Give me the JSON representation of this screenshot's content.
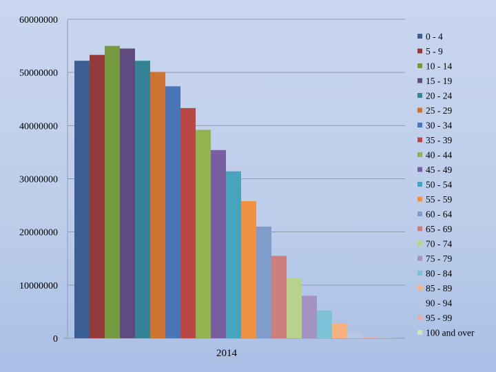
{
  "chart_data": {
    "type": "bar",
    "title": "",
    "xlabel": "",
    "ylabel": "",
    "categories": [
      "2014"
    ],
    "ylim": [
      0,
      60000000
    ],
    "y_ticks": [
      "0",
      "10000000",
      "20000000",
      "30000000",
      "40000000",
      "50000000",
      "60000000"
    ],
    "grid": true,
    "legend_position": "right",
    "series": [
      {
        "name": "0 - 4",
        "color": "#3c5f93",
        "values": [
          52200000
        ]
      },
      {
        "name": "5 - 9",
        "color": "#943b3a",
        "values": [
          53300000
        ]
      },
      {
        "name": "10 - 14",
        "color": "#769a3f",
        "values": [
          55000000
        ]
      },
      {
        "name": "15 - 19",
        "color": "#5f4b80",
        "values": [
          54500000
        ]
      },
      {
        "name": "20 - 24",
        "color": "#358396",
        "values": [
          52200000
        ]
      },
      {
        "name": "25 - 29",
        "color": "#cc7432",
        "values": [
          50100000
        ]
      },
      {
        "name": "30 - 34",
        "color": "#4a76b5",
        "values": [
          47400000
        ]
      },
      {
        "name": "35 - 39",
        "color": "#b84745",
        "values": [
          43300000
        ]
      },
      {
        "name": "40 - 44",
        "color": "#93b351",
        "values": [
          39200000
        ]
      },
      {
        "name": "45 - 49",
        "color": "#7860a0",
        "values": [
          35400000
        ]
      },
      {
        "name": "50 - 54",
        "color": "#47a4bf",
        "values": [
          31400000
        ]
      },
      {
        "name": "55 - 59",
        "color": "#ee9242",
        "values": [
          25800000
        ]
      },
      {
        "name": "60 - 64",
        "color": "#7f9ccb",
        "values": [
          21000000
        ]
      },
      {
        "name": "65 - 69",
        "color": "#ce7f7d",
        "values": [
          15500000
        ]
      },
      {
        "name": "70 - 74",
        "color": "#b6d28d",
        "values": [
          11300000
        ]
      },
      {
        "name": "75 - 79",
        "color": "#a293c0",
        "values": [
          8000000
        ]
      },
      {
        "name": "80 - 84",
        "color": "#7ec2d8",
        "values": [
          5200000
        ]
      },
      {
        "name": "85 - 89",
        "color": "#f7b17e",
        "values": [
          2800000
        ]
      },
      {
        "name": "90 - 94",
        "color": "#b6c8e4",
        "values": [
          1100000
        ]
      },
      {
        "name": "95 - 99",
        "color": "#e2aeae",
        "values": [
          270000
        ]
      },
      {
        "name": "100 and over",
        "color": "#cfe3b5",
        "values": [
          30000
        ]
      }
    ]
  }
}
